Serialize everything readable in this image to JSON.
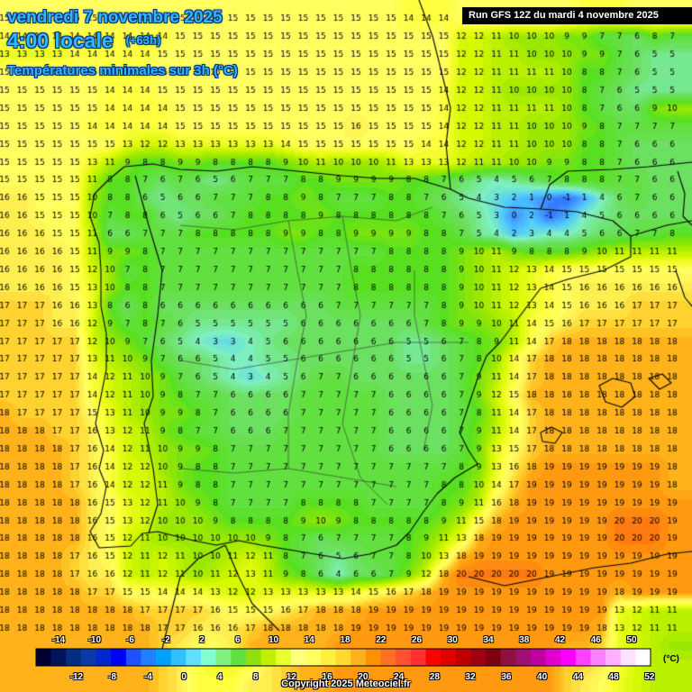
{
  "title": {
    "date": "vendredi 7 novembre 2025",
    "time": "4:00 locale",
    "lead": "(+63h)",
    "variable": "Températures minimales sur 3h (°C)"
  },
  "run_info": "Run GFS 12Z du mardi 4 novembre 2025",
  "legend": {
    "unit": "(°C)",
    "upper_labels": [
      "-14",
      "-10",
      "-6",
      "-2",
      "2",
      "6",
      "10",
      "14",
      "18",
      "22",
      "26",
      "30",
      "34",
      "38",
      "42",
      "46",
      "50"
    ],
    "lower_labels": [
      "-12",
      "-8",
      "-4",
      "0",
      "4",
      "8",
      "12",
      "16",
      "20",
      "24",
      "28",
      "32",
      "36",
      "40",
      "44",
      "48",
      "52"
    ],
    "colors": [
      "#000033",
      "#00165c",
      "#042f80",
      "#0b3aa8",
      "#0028d0",
      "#0000ff",
      "#2050ff",
      "#2080ff",
      "#00a0ff",
      "#30c0ff",
      "#60e0ff",
      "#80ffd0",
      "#80f080",
      "#60e040",
      "#90e010",
      "#c0f000",
      "#e8ff30",
      "#ffff80",
      "#ffff60",
      "#fff040",
      "#ffd830",
      "#ffb020",
      "#ff9000",
      "#ff7020",
      "#ff5030",
      "#ff3030",
      "#ff0000",
      "#e00000",
      "#c00000",
      "#a00010",
      "#800010",
      "#901040",
      "#a01070",
      "#c000a0",
      "#e000d0",
      "#ff00ff",
      "#ff40ff",
      "#ff80ff",
      "#ffb0ff",
      "#ffe0ff",
      "#ffffff"
    ]
  },
  "copyright": "Copyright 2025 Meteociel.fr",
  "grid_temperatures": [
    "15 15 15 15 15 15 15 15 15 15 15 15 15 15 15 15 15 15 15 15 15 15 15 14 14 14 15 15 15 15 15 15 15 14 14 14 15 15 15",
    "14 14 14 14 14 14 14 14 14 14 15 15 15 15 15 15 15 15 15 15 15 15 15 15 15 15 12 12 11 10 10 10 9 9 7 7 6 8 7",
    "13 13 13 13 14 14 14 14 14 15 15 15 15 15 15 15 15 15 15 15 15 15 15 15 15 15 12 12 11 11 10 10 10 9 9 7 6 5 5",
    "15 15 15 15 15 15 14 14 14 15 15 15 15 15 15 15 15 15 15 15 15 15 15 15 15 15 12 12 11 11 11 11 10 8 8 7 6 5 5",
    "15 15 15 15 15 15 14 14 14 15 15 15 15 15 15 15 15 15 15 15 15 15 15 15 15 14 12 12 11 10 10 10 10 8 7 6 5 5 5",
    "15 15 15 15 15 15 14 14 14 14 15 15 15 15 15 15 15 15 15 15 15 15 15 15 15 14 12 12 11 11 11 11 10 8 7 6 6 9 10",
    "15 15 15 15 15 14 14 14 14 14 15 15 15 15 15 15 15 15 15 15 16 15 15 15 15 14 12 12 11 11 10 10 10 9 8 7 7 7 7",
    "15 15 15 15 15 15 15 13 12 12 13 13 13 13 13 13 14 15 15 15 15 15 15 15 14 14 12 12 11 11 10 10 10 8 8 7 6 6 6",
    "15 15 15 15 15 13 11 9 8 8 9 9 8 8 8 8 9 10 11 10 10 10 11 13 13 13 12 11 11 10 10 9 9 8 8 7 6 6 6",
    "15 15 15 15 15 11 8 8 7 6 7 6 5 6 7 7 7 8 8 9 9 9 9 8 8 7 6 5 4 5 6 7 8 8 8 7 7 6 6",
    "16 16 15 15 15 10 8 8 6 5 6 6 7 7 7 8 8 9 8 7 7 7 8 8 7 6 5 4 3 2 1 0 -1 1 4 6 7 6 6",
    "16 16 15 15 15 10 7 8 8 6 5 6 6 7 8 8 8 8 9 8 8 8 8 8 8 7 6 5 3 0 2 -1 1 4 5 6 6 6 6",
    "16 16 16 15 15 11 6 6 7 7 7 8 8 8 8 8 9 9 8 8 9 9 9 9 8 8 7 5 4 2 3 4 4 5 6 6 7 7 8",
    "16 16 16 16 15 11 9 9 8 7 7 7 7 7 7 7 7 7 7 7 7 7 8 8 8 8 9 10 11 9 8 8 8 9 10 11 11 11 11",
    "16 16 16 16 15 12 10 7 8 7 7 7 7 7 7 7 7 7 7 7 8 8 8 8 8 8 9 10 11 12 13 14 15 15 15 15 15 15 15",
    "16 16 16 16 15 13 10 8 8 7 7 7 7 7 7 7 7 7 7 7 8 8 8 8 8 8 9 10 11 12 13 14 15 16 16 16 16 16 16",
    "17 17 17 16 16 13 8 6 8 6 6 6 6 6 6 6 6 6 6 7 7 7 7 7 7 8 9 10 11 12 13 14 15 16 16 16 17 17 17",
    "17 17 17 16 16 12 9 7 8 7 6 5 5 5 5 5 5 6 6 6 6 6 6 6 7 8 9 9 10 11 14 15 16 17 17 17 17 17 17",
    "17 17 17 17 17 12 10 9 7 6 5 4 3 3 4 5 6 6 6 6 6 6 6 5 5 6 7 8 9 11 14 17 18 18 18 18 18 18 18",
    "17 17 17 17 17 13 11 10 9 7 6 6 5 4 4 5 5 6 6 6 6 6 6 5 5 6 7 8 10 14 17 18 18 18 18 18 18 18 18",
    "17 17 17 17 17 14 12 11 10 9 7 6 5 4 3 4 5 6 7 7 6 6 6 6 6 6 7 9 11 14 17 18 18 18 18 18 18 18 18",
    "17 17 17 17 17 14 12 11 10 9 8 7 7 6 6 6 6 7 7 7 7 7 6 6 6 6 7 9 12 15 18 18 18 18 18 18 18 18 18",
    "18 17 17 17 17 15 13 11 10 9 9 8 7 6 6 6 6 7 7 7 7 7 6 6 6 6 7 8 11 14 17 18 18 18 18 18 18 18 18",
    "18 18 18 17 17 16 13 12 11 9 8 7 7 6 6 6 7 7 7 7 7 7 6 6 6 6 7 9 11 14 17 18 18 18 18 18 18 18 18",
    "18 18 18 18 17 16 14 12 11 10 9 9 8 7 7 7 7 7 7 7 7 7 6 6 6 6 7 9 13 15 17 18 18 18 18 18 18 18 18",
    "18 18 18 18 17 16 14 12 12 10 9 8 8 7 7 7 7 7 7 7 7 7 7 7 7 7 8 9 13 16 18 19 19 19 19 19 19 19 18",
    "18 18 18 18 17 16 14 12 12 11 9 8 8 7 7 7 7 7 7 7 7 7 7 7 7 8 8 10 14 17 19 19 19 19 19 19 19 19 18",
    "18 18 18 18 18 16 15 13 12 11 10 9 8 7 7 7 7 8 8 8 8 7 7 7 7 8 9 11 16 18 19 19 19 19 19 19 19 19 19",
    "18 18 18 18 18 16 15 13 12 10 10 10 9 8 8 8 8 9 10 9 8 8 8 8 8 9 11 15 18 19 19 19 19 19 19 20 20 20 19",
    "18 18 18 18 18 16 15 12 11 10 10 10 10 10 10 9 8 7 6 7 7 7 7 8 9 11 13 18 19 19 19 19 19 19 19 20 20 20 19",
    "18 18 18 18 17 16 15 12 11 12 11 10 10 11 12 11 8 7 6 5 6 7 7 8 10 13 18 19 19 19 19 19 19 19 19 19 19 19 19",
    "18 18 18 18 17 16 16 12 11 12 11 10 11 12 13 11 9 8 6 4 6 6 7 9 12 18 20 20 20 20 20 19 19 19 19 19 19 19 19",
    "18 18 18 18 18 17 17 15 15 14 14 14 13 12 12 13 13 13 13 13 14 15 16 17 18 19 19 19 19 19 19 19 19 19 19 18 19 19 19",
    "18 18 18 18 18 18 18 18 17 17 17 17 16 15 15 15 16 17 18 18 18 19 19 19 19 19 19 19 19 19 19 19 19 19 19 13 12 11 11",
    "18 18 18 18 18 18 18 18 18 17 17 16 16 16 17 18 18 18 18 18 19 19 19 19 19 19 19 19 19 19 19 19 19 19 18 13 12 11 11",
    "18 18 18 18 18 18 18 18 18 17 16 15 15 16 18 18 18 18 18 19 19 19 19 19 19 19 19 19 19 19 19 19 18 18 17 13 12 11 10",
    "18 18 18 18 18 18 18 18 18 17 16 14 13 13 14 16 17 18 18 19 19 19 19 19 19 19 19 19 19 19 19 19 17 17 16 14 12 11 11",
    "18 18 18 18 18 18 18 18 18 17 16 14 14 14 16 16 17 18 18 19 19 19 19 19 19 19 19 19 19 19 19 19 17 16 15 13 12 11 11"
  ]
}
